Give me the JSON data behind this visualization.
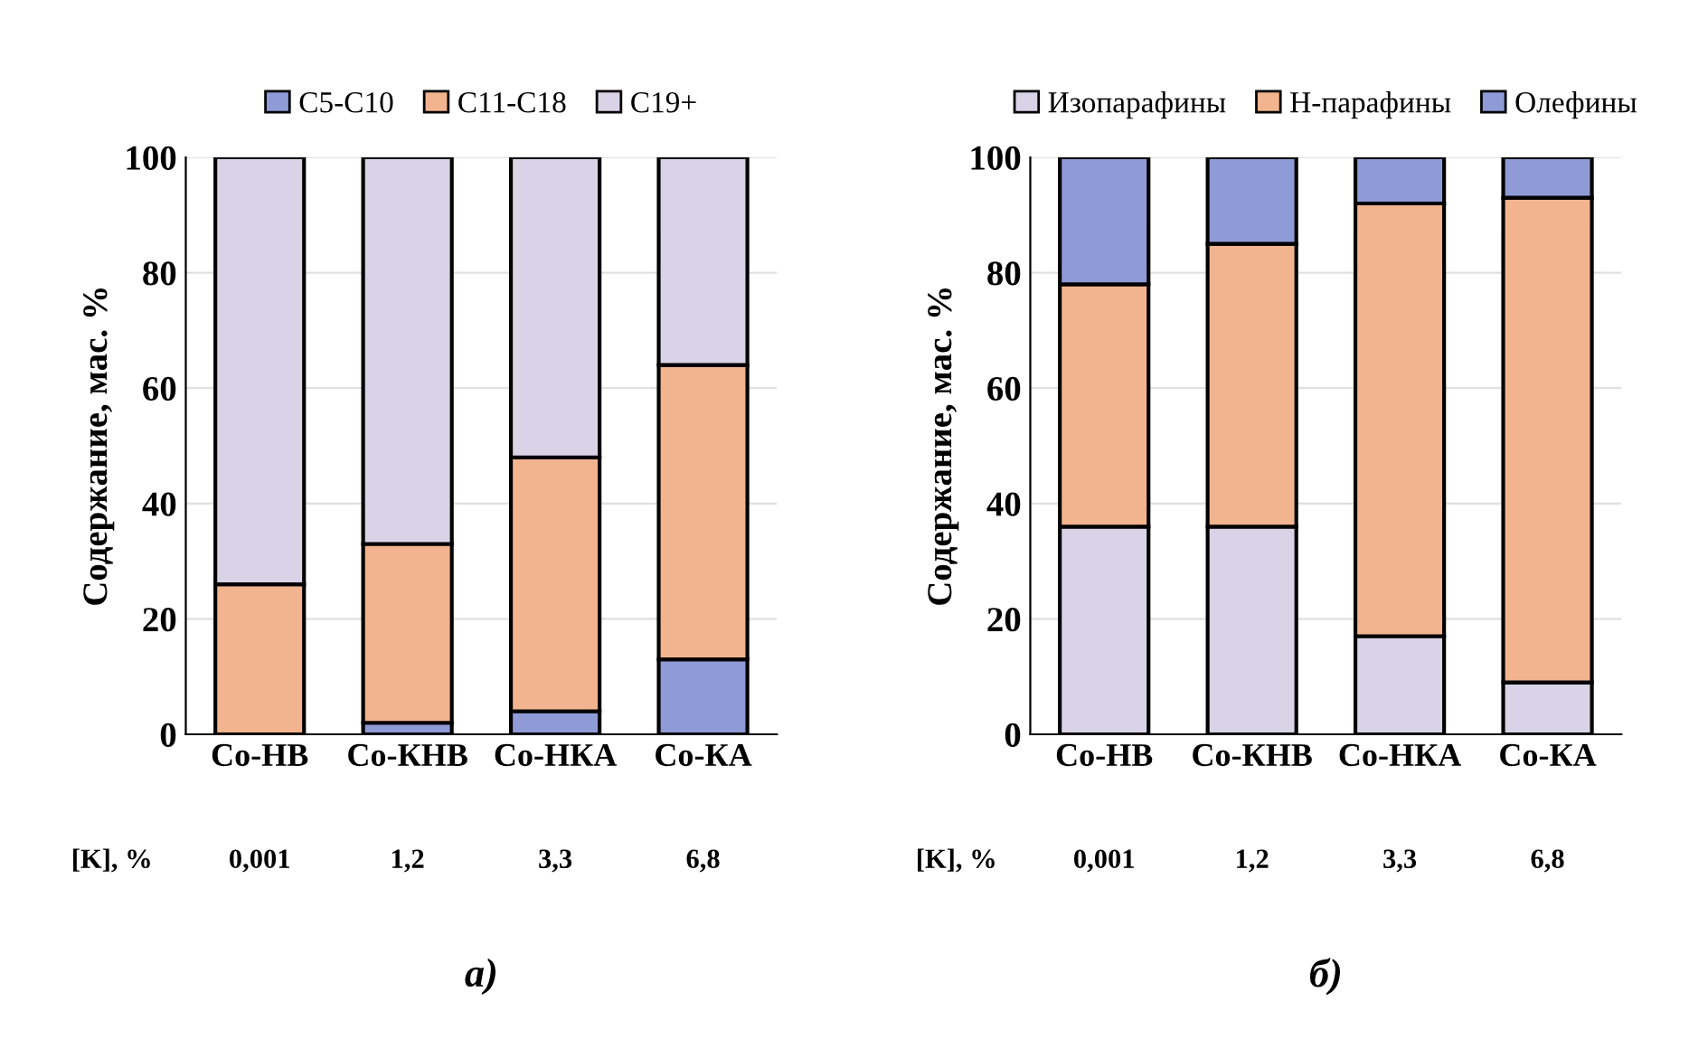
{
  "chart_data": [
    {
      "type": "bar",
      "stacked": true,
      "title": "а)",
      "ylabel": "Содержание, мас. %",
      "categories": [
        "Co-НВ",
        "Co-КНВ",
        "Co-НКА",
        "Co-КА"
      ],
      "ylim": [
        0,
        100
      ],
      "yticks": [
        0,
        20,
        40,
        60,
        80,
        100
      ],
      "grid": "y",
      "legend": "top",
      "series": [
        {
          "name": "C5-C10",
          "color": "#8e9bd6",
          "values": [
            0,
            2,
            4,
            13
          ]
        },
        {
          "name": "C11-C18",
          "color": "#f2b48e",
          "values": [
            26,
            31,
            44,
            51
          ]
        },
        {
          "name": "C19+",
          "color": "#d8d3e6",
          "values": [
            74,
            67,
            52,
            36
          ]
        }
      ],
      "annotations": [
        "[K], %",
        "0,001",
        "1,2",
        "3,3",
        "6,8"
      ]
    },
    {
      "type": "bar",
      "stacked": true,
      "title": "б)",
      "ylabel": "Содержание, мас. %",
      "categories": [
        "Co-НВ",
        "Co-КНВ",
        "Co-НКА",
        "Co-КА"
      ],
      "ylim": [
        0,
        100
      ],
      "yticks": [
        0,
        20,
        40,
        60,
        80,
        100
      ],
      "grid": "y",
      "legend": "top",
      "series": [
        {
          "name": "Изопарафины",
          "color": "#d8d3e6",
          "values": [
            36,
            36,
            17,
            9
          ]
        },
        {
          "name": "Н-парафины",
          "color": "#f2b48e",
          "values": [
            42,
            49,
            75,
            84
          ]
        },
        {
          "name": "Олефины",
          "color": "#8e9bd6",
          "values": [
            22,
            15,
            8,
            7
          ]
        }
      ],
      "annotations": [
        "[K], %",
        "0,001",
        "1,2",
        "3,3",
        "6,8"
      ]
    }
  ]
}
